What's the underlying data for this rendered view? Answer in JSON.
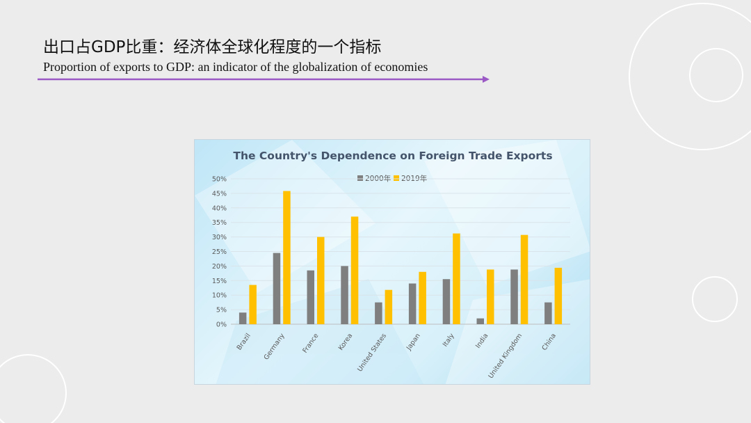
{
  "slide": {
    "title_cn": "出口占GDP比重：经济体全球化程度的一个指标",
    "title_en": "Proportion of exports to GDP: an indicator of the globalization  of economies"
  },
  "colors": {
    "underline": "#9b59c5",
    "series_2000": "#7f7f7f",
    "series_2019": "#ffc000",
    "chart_title": "#44546a"
  },
  "chart_data": {
    "type": "bar",
    "title": "The Country's Dependence on Foreign Trade Exports",
    "categories": [
      "Brazil",
      "Germany",
      "France",
      "Korea",
      "United States",
      "Japan",
      "Italy",
      "India",
      "United Kingdom",
      "China"
    ],
    "series": [
      {
        "name": "2000年",
        "values": [
          4.0,
          24.5,
          18.5,
          20.0,
          7.5,
          14.0,
          15.5,
          2.0,
          18.8,
          7.5
        ]
      },
      {
        "name": "2019年",
        "values": [
          13.5,
          45.8,
          30.0,
          37.0,
          11.8,
          18.0,
          31.2,
          18.8,
          30.7,
          19.4
        ]
      }
    ],
    "ylim": [
      0,
      50
    ],
    "yticks": [
      "0%",
      "5%",
      "10%",
      "15%",
      "20%",
      "25%",
      "30%",
      "35%",
      "40%",
      "45%",
      "50%"
    ],
    "legend_position": "top-center",
    "grid": true
  }
}
